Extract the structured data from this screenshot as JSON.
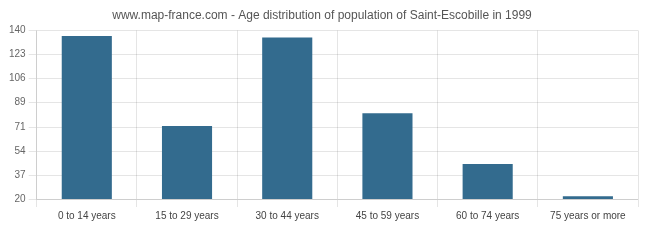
{
  "chart_data": {
    "type": "bar",
    "title": "www.map-france.com - Age distribution of population of Saint-Escobille in 1999",
    "categories": [
      "0 to 14 years",
      "15 to 29 years",
      "30 to 44 years",
      "45 to 59 years",
      "60 to 74 years",
      "75 years or more"
    ],
    "values": [
      136,
      72,
      135,
      81,
      45,
      22
    ],
    "color": "#336b8e",
    "ylim": [
      20,
      140
    ],
    "yticks": [
      20,
      37,
      54,
      71,
      89,
      106,
      123,
      140
    ],
    "grid": true
  }
}
